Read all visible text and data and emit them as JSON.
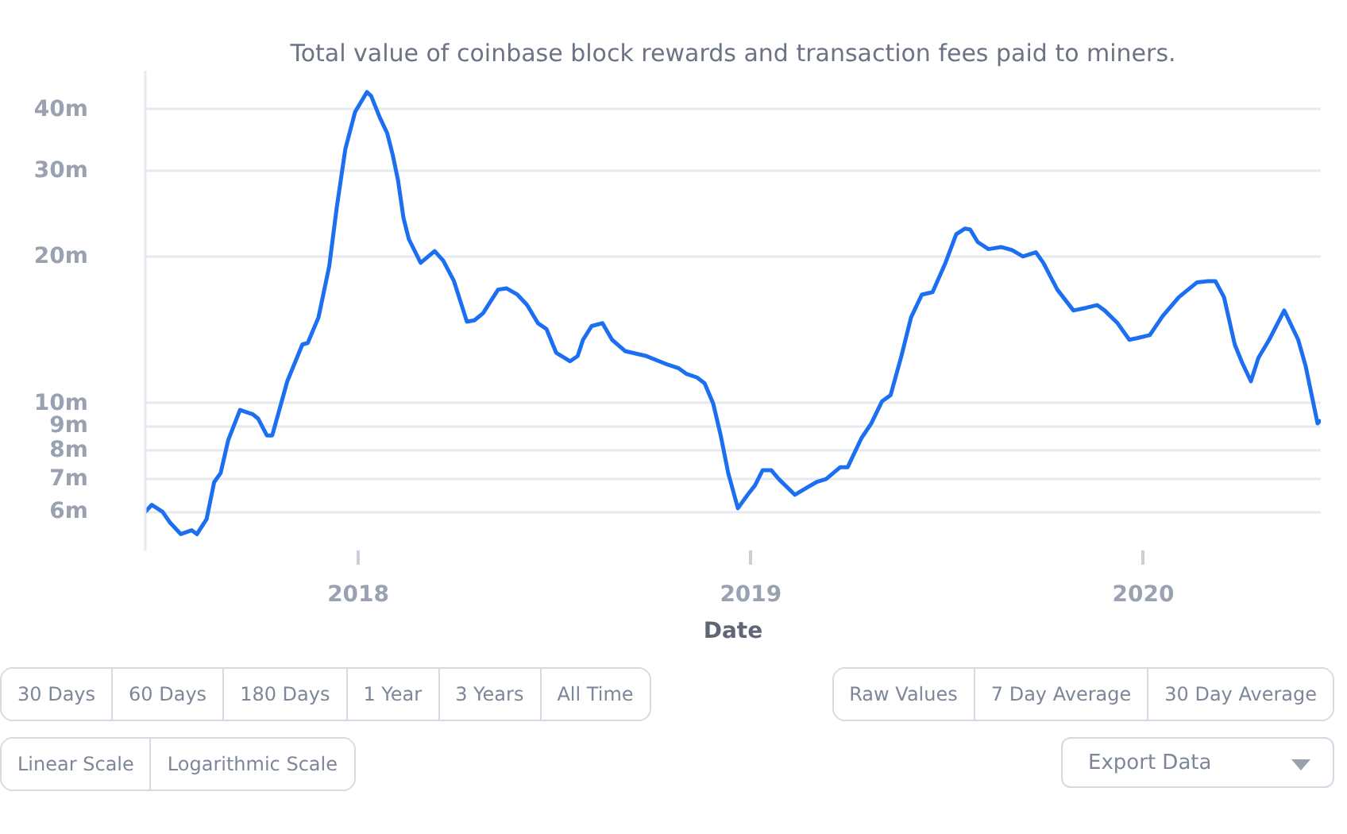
{
  "chart_data": {
    "type": "line",
    "subtitle": "Total value of coinbase block rewards and transaction fees paid to miners.",
    "xlabel": "Date",
    "x": [
      "2017-06-17",
      "2017-06-23",
      "2017-07-03",
      "2017-07-10",
      "2017-07-20",
      "2017-07-30",
      "2017-08-04",
      "2017-08-13",
      "2017-08-20",
      "2017-08-26",
      "2017-09-02",
      "2017-09-13",
      "2017-09-25",
      "2017-09-30",
      "2017-10-08",
      "2017-10-13",
      "2017-10-27",
      "2017-11-10",
      "2017-11-15",
      "2017-11-25",
      "2017-12-05",
      "2017-12-12",
      "2017-12-20",
      "2017-12-29",
      "2018-01-09",
      "2018-01-13",
      "2018-01-21",
      "2018-01-28",
      "2018-02-02",
      "2018-02-07",
      "2018-02-12",
      "2018-02-17",
      "2018-02-28",
      "2018-03-13",
      "2018-03-21",
      "2018-03-31",
      "2018-04-12",
      "2018-04-19",
      "2018-04-27",
      "2018-05-11",
      "2018-05-19",
      "2018-05-29",
      "2018-06-07",
      "2018-06-17",
      "2018-06-25",
      "2018-07-04",
      "2018-07-17",
      "2018-07-24",
      "2018-07-29",
      "2018-08-06",
      "2018-08-16",
      "2018-08-25",
      "2018-09-06",
      "2018-09-26",
      "2018-10-16",
      "2018-10-26",
      "2018-11-02",
      "2018-11-12",
      "2018-11-19",
      "2018-11-27",
      "2018-12-04",
      "2018-12-11",
      "2018-12-20",
      "2018-12-29",
      "2019-01-05",
      "2019-01-12",
      "2019-01-20",
      "2019-01-27",
      "2019-02-11",
      "2019-02-21",
      "2019-03-03",
      "2019-03-12",
      "2019-03-25",
      "2019-04-01",
      "2019-04-14",
      "2019-04-23",
      "2019-05-03",
      "2019-05-11",
      "2019-05-21",
      "2019-05-30",
      "2019-06-09",
      "2019-06-19",
      "2019-07-01",
      "2019-07-11",
      "2019-07-19",
      "2019-07-24",
      "2019-07-31",
      "2019-08-10",
      "2019-08-22",
      "2019-09-01",
      "2019-09-11",
      "2019-09-23",
      "2019-09-30",
      "2019-10-13",
      "2019-10-28",
      "2019-11-09",
      "2019-11-19",
      "2019-11-26",
      "2019-12-08",
      "2019-12-19",
      "2019-12-26",
      "2020-01-07",
      "2020-01-19",
      "2020-02-03",
      "2020-02-20",
      "2020-03-01",
      "2020-03-08",
      "2020-03-16",
      "2020-03-26",
      "2020-04-02",
      "2020-04-10",
      "2020-04-17",
      "2020-04-27",
      "2020-05-11",
      "2020-05-24",
      "2020-05-31",
      "2020-06-11",
      "2020-06-13"
    ],
    "series": [
      {
        "color": "#1b6ff0",
        "values": [
          6.0,
          6.2,
          6.0,
          5.7,
          5.4,
          5.5,
          5.4,
          5.8,
          6.9,
          7.2,
          8.4,
          9.7,
          9.5,
          9.3,
          8.6,
          8.6,
          11.1,
          13.2,
          13.3,
          15.0,
          19.1,
          25.2,
          33.2,
          39.5,
          43.4,
          42.6,
          38.5,
          35.7,
          32.3,
          28.6,
          24.0,
          21.7,
          19.4,
          20.5,
          19.6,
          17.8,
          14.7,
          14.8,
          15.3,
          17.1,
          17.2,
          16.7,
          15.9,
          14.6,
          14.2,
          12.7,
          12.2,
          12.5,
          13.5,
          14.4,
          14.6,
          13.5,
          12.8,
          12.5,
          12.0,
          11.8,
          11.5,
          11.3,
          11.0,
          10.0,
          8.6,
          7.2,
          6.1,
          6.5,
          6.8,
          7.3,
          7.3,
          7.0,
          6.5,
          6.7,
          6.9,
          7.0,
          7.4,
          7.4,
          8.5,
          9.1,
          10.1,
          10.4,
          12.5,
          15.0,
          16.7,
          16.9,
          19.4,
          22.2,
          22.8,
          22.7,
          21.4,
          20.7,
          20.9,
          20.6,
          20.0,
          20.4,
          19.4,
          17.1,
          15.5,
          15.7,
          15.9,
          15.5,
          14.6,
          13.5,
          13.6,
          13.8,
          15.1,
          16.5,
          17.7,
          17.8,
          17.8,
          16.5,
          13.2,
          12.1,
          11.1,
          12.4,
          13.5,
          15.5,
          13.5,
          11.9,
          9.1,
          9.2
        ]
      }
    ],
    "xlim": [
      "2017-06-17",
      "2020-06-14"
    ],
    "xticks": [
      "2018",
      "2019",
      "2020"
    ],
    "ylim": [
      5,
      48
    ],
    "yticks": [
      {
        "value": 6,
        "label": "6m"
      },
      {
        "value": 7,
        "label": "7m"
      },
      {
        "value": 8,
        "label": "8m"
      },
      {
        "value": 9,
        "label": "9m"
      },
      {
        "value": 10,
        "label": "10m"
      },
      {
        "value": 20,
        "label": "20m"
      },
      {
        "value": 30,
        "label": "30m"
      },
      {
        "value": 40,
        "label": "40m"
      }
    ],
    "log": "y",
    "grid": "y",
    "annotations": [
      "30 Days",
      "60 Days",
      "180 Days",
      "1 Year",
      "3 Years",
      "All Time",
      "Raw Values",
      "7 Day Average",
      "30 Day Average",
      "Linear Scale",
      "Logarithmic Scale",
      "Export Data"
    ]
  }
}
